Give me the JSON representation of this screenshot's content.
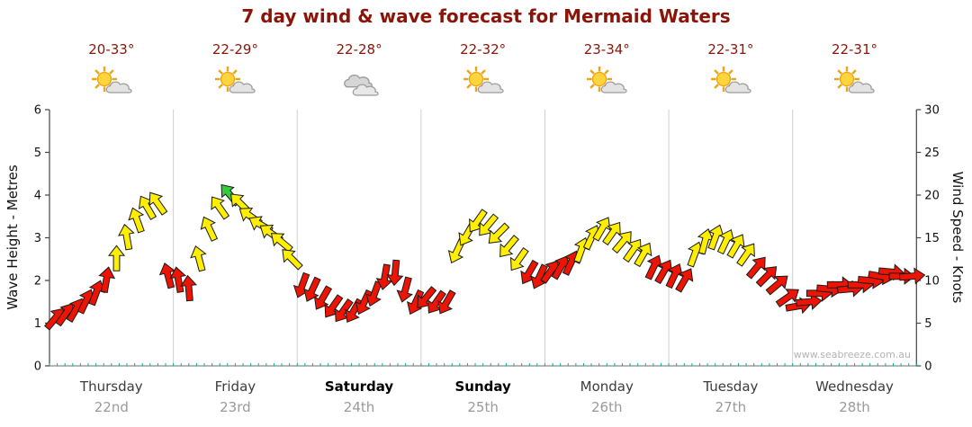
{
  "title": "7 day wind & wave forecast for Mermaid Waters",
  "watermark": "www.seabreeze.com.au",
  "axes": {
    "left_label": "Wave Height - Metres",
    "right_label": "Wind Speed - Knots",
    "left_ticks": [
      "0",
      "1",
      "2",
      "3",
      "4",
      "5",
      "6"
    ],
    "right_ticks": [
      "0",
      "5",
      "10",
      "15",
      "20",
      "25",
      "30"
    ]
  },
  "days": [
    {
      "name": "Thursday",
      "date": "22nd",
      "temp": "20-33°",
      "icon": "sun-cloud",
      "weekend": false
    },
    {
      "name": "Friday",
      "date": "23rd",
      "temp": "22-29°",
      "icon": "sun-cloud",
      "weekend": false
    },
    {
      "name": "Saturday",
      "date": "24th",
      "temp": "22-28°",
      "icon": "cloud",
      "weekend": true
    },
    {
      "name": "Sunday",
      "date": "25th",
      "temp": "22-32°",
      "icon": "sun-cloud",
      "weekend": true
    },
    {
      "name": "Monday",
      "date": "26th",
      "temp": "23-34°",
      "icon": "sun-cloud",
      "weekend": false
    },
    {
      "name": "Tuesday",
      "date": "27th",
      "temp": "22-31°",
      "icon": "sun-cloud",
      "weekend": false
    },
    {
      "name": "Wednesday",
      "date": "28th",
      "temp": "22-31°",
      "icon": "sun-cloud",
      "weekend": false
    }
  ],
  "chart_data": {
    "type": "scatter",
    "title": "7 day wind & wave forecast for Mermaid Waters",
    "marker": "wind-direction arrows colored by strength",
    "x_categories": [
      "Thursday 22nd",
      "Friday 23rd",
      "Saturday 24th",
      "Sunday 25th",
      "Monday 26th",
      "Tuesday 27th",
      "Wednesday 28th"
    ],
    "y_left": {
      "label": "Wave Height - Metres",
      "range": [
        0,
        6
      ]
    },
    "y_right": {
      "label": "Wind Speed - Knots",
      "range": [
        0,
        30
      ]
    },
    "grid": "vertical day separators only",
    "legend": "none",
    "colors": {
      "r": "#ee1404",
      "y": "#ffee00",
      "g": "#35cc3a"
    },
    "points_per_day": 12,
    "days_wind": [
      {
        "day": "Thursday",
        "knots": [
          5.5,
          6,
          6.5,
          7.5,
          8.5,
          10,
          12.5,
          15,
          17,
          18.5,
          19,
          10.5
        ],
        "colors": [
          "r",
          "r",
          "r",
          "r",
          "r",
          "r",
          "y",
          "y",
          "y",
          "y",
          "y",
          "r"
        ],
        "dirs": [
          40,
          35,
          30,
          25,
          20,
          10,
          0,
          -10,
          -20,
          -30,
          -35,
          -15
        ]
      },
      {
        "day": "Friday",
        "knots": [
          10,
          9,
          12.5,
          16,
          18.5,
          20,
          19,
          17.5,
          16.5,
          15.5,
          14.5,
          12.5
        ],
        "colors": [
          "r",
          "r",
          "y",
          "y",
          "y",
          "g",
          "y",
          "y",
          "y",
          "y",
          "y",
          "y"
        ],
        "dirs": [
          -10,
          -5,
          -15,
          -25,
          -35,
          -40,
          -45,
          -55,
          -60,
          -55,
          -50,
          -45
        ]
      },
      {
        "day": "Saturday",
        "knots": [
          9.5,
          9,
          8,
          7,
          6.5,
          6.5,
          7.5,
          8.5,
          10.5,
          11,
          9,
          7.5
        ],
        "colors": [
          "r",
          "r",
          "r",
          "r",
          "r",
          "r",
          "r",
          "r",
          "r",
          "r",
          "r",
          "r"
        ],
        "dirs": [
          200,
          205,
          210,
          215,
          215,
          210,
          205,
          200,
          190,
          185,
          195,
          205
        ]
      },
      {
        "day": "Sunday",
        "knots": [
          8,
          7.5,
          7.5,
          13.5,
          15.5,
          17,
          16.5,
          15.5,
          14,
          12.5,
          11,
          10.5
        ],
        "colors": [
          "r",
          "r",
          "r",
          "y",
          "y",
          "y",
          "y",
          "y",
          "y",
          "y",
          "r",
          "r"
        ],
        "dirs": [
          220,
          215,
          210,
          205,
          210,
          215,
          220,
          225,
          220,
          215,
          210,
          205
        ]
      },
      {
        "day": "Monday",
        "knots": [
          11,
          11.5,
          12,
          13.5,
          15,
          16,
          15.5,
          14.5,
          13.5,
          13,
          11.5,
          11
        ],
        "colors": [
          "r",
          "r",
          "r",
          "y",
          "y",
          "y",
          "y",
          "y",
          "y",
          "y",
          "r",
          "r"
        ],
        "dirs": [
          35,
          30,
          25,
          20,
          25,
          30,
          35,
          40,
          35,
          30,
          25,
          30
        ]
      },
      {
        "day": "Tuesday",
        "knots": [
          10.5,
          10,
          13,
          14.5,
          15,
          14.5,
          14,
          13,
          11.5,
          10.5,
          9.5,
          8
        ],
        "colors": [
          "r",
          "r",
          "y",
          "y",
          "y",
          "y",
          "y",
          "y",
          "r",
          "r",
          "r",
          "r"
        ],
        "dirs": [
          25,
          30,
          20,
          15,
          20,
          25,
          30,
          35,
          40,
          45,
          50,
          55
        ]
      },
      {
        "day": "Wednesday",
        "knots": [
          7,
          7.5,
          8.5,
          9,
          9.5,
          9,
          9.5,
          10,
          10.5,
          11,
          10.5,
          10.5
        ],
        "colors": [
          "r",
          "r",
          "r",
          "r",
          "r",
          "r",
          "r",
          "r",
          "r",
          "r",
          "r",
          "r"
        ],
        "dirs": [
          80,
          85,
          90,
          95,
          90,
          85,
          90,
          95,
          100,
          95,
          90,
          85
        ]
      }
    ]
  }
}
